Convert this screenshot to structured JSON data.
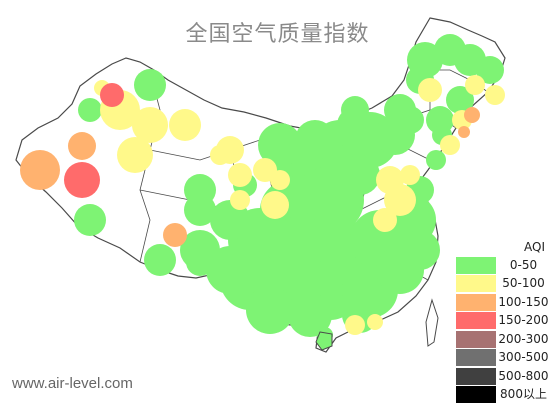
{
  "map": {
    "title": "全国空气质量指数",
    "watermark": "www.air-level.com"
  },
  "legend": {
    "title": "AQI",
    "items": [
      {
        "label": "0-50",
        "color": "#7ef374"
      },
      {
        "label": "50-100",
        "color": "#fff98a"
      },
      {
        "label": "100-150",
        "color": "#ffb26f"
      },
      {
        "label": "150-200",
        "color": "#ff6b6b"
      },
      {
        "label": "200-300",
        "color": "#a77272"
      },
      {
        "label": "300-500",
        "color": "#707070"
      },
      {
        "label": "500-800",
        "color": "#404040"
      },
      {
        "label": "800以上",
        "color": "#000000"
      }
    ]
  },
  "colors": {
    "good": "#7ef374",
    "moderate": "#fff98a",
    "sensitive": "#ffb26f",
    "unhealthy": "#ff6b6b",
    "boundary": "#4a4a4a"
  }
}
